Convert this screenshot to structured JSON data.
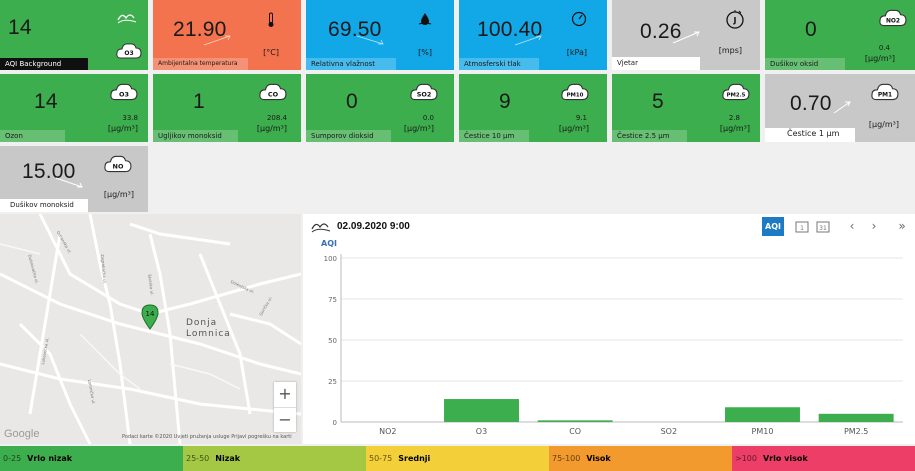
{
  "tiles": {
    "aqi_background": {
      "value": "14",
      "label": "AQI Background",
      "icon": "aqi-cloud-icon",
      "badge": "O3"
    },
    "temperature": {
      "value": "21.90",
      "label": "Ambijentalna temperatura",
      "unit": "[°C]",
      "icon": "thermometer-icon"
    },
    "humidity": {
      "value": "69.50",
      "label": "Relativna vlažnost",
      "unit": "[%]",
      "icon": "water-drop-icon"
    },
    "pressure": {
      "value": "100.40",
      "label": "Atmosferski tlak",
      "unit": "[kPa]",
      "icon": "gauge-icon"
    },
    "wind": {
      "value": "0.26",
      "label": "Vjetar",
      "unit": "[mps]",
      "icon": "wind-icon"
    },
    "no2": {
      "value": "0",
      "label": "Dušikov oksid",
      "aux": "0.4",
      "unit": "[µg/m³]",
      "badge": "NO2"
    },
    "o3": {
      "value": "14",
      "label": "Ozon",
      "aux": "33.8",
      "unit": "[µg/m³]",
      "badge": "O3"
    },
    "co": {
      "value": "1",
      "label": "Ugljikov monoksid",
      "aux": "208.4",
      "unit": "[µg/m³]",
      "badge": "CO"
    },
    "so2": {
      "value": "0",
      "label": "Sumporov dioksid",
      "aux": "0.0",
      "unit": "[µg/m³]",
      "badge": "SO2"
    },
    "pm10": {
      "value": "9",
      "label": "Čestice 10 µm",
      "aux": "9.1",
      "unit": "[µg/m³]",
      "badge": "PM10"
    },
    "pm25": {
      "value": "5",
      "label": "Čestice 2.5 µm",
      "aux": "2.8",
      "unit": "[µg/m³]",
      "badge": "PM2.5"
    },
    "pm1": {
      "value": "0.70",
      "label": "Čestice 1 µm",
      "unit": "[µg/m³]",
      "badge": "PM1"
    },
    "no": {
      "value": "15.00",
      "label": "Dušikov monoksid",
      "unit": "[µg/m³]",
      "badge": "NO"
    }
  },
  "map": {
    "place": "Donja Lomnica",
    "marker_value": "14",
    "zoom_in": "+",
    "zoom_out": "−",
    "google": "Google",
    "attribution": "Podaci karte ©2020   Uvjeti pružanja usluge   Prijavi pogrešku na karti",
    "streets": [
      "Odranska ul.",
      "Dubrovačka ul.",
      "Zagrebačka ul.",
      "Školska ul.",
      "Lukavečka ul.",
      "Dolenjska ul.",
      "Gorička ul.",
      "Lomnička ul."
    ]
  },
  "chart_panel": {
    "timestamp": "02.09.2020 9:00",
    "buttons": {
      "aqi": "AQI",
      "day": "1",
      "month": "31",
      "prev": "‹",
      "next": "›",
      "last": "»"
    },
    "icon": "aqi-cloud-icon"
  },
  "chart_data": {
    "type": "bar",
    "ylabel": "AQI",
    "categories": [
      "NO2",
      "O3",
      "CO",
      "SO2",
      "PM10",
      "PM2.5"
    ],
    "values": [
      0,
      14,
      1,
      0,
      9,
      5
    ],
    "ylim": [
      0,
      100
    ],
    "yticks": [
      0,
      25,
      50,
      75,
      100
    ],
    "grid": true,
    "bar_color": "#3dae4e"
  },
  "legend": [
    {
      "range": "0-25",
      "name": "Vrlo nizak",
      "color": "#3dae4e"
    },
    {
      "range": "25-50",
      "name": "Nizak",
      "color": "#a4c843"
    },
    {
      "range": "50-75",
      "name": "Srednji",
      "color": "#f3cf3a"
    },
    {
      "range": "75-100",
      "name": "Visok",
      "color": "#f39a2e"
    },
    {
      "range": ">100",
      "name": "Vrlo visok",
      "color": "#ed3e68"
    }
  ]
}
